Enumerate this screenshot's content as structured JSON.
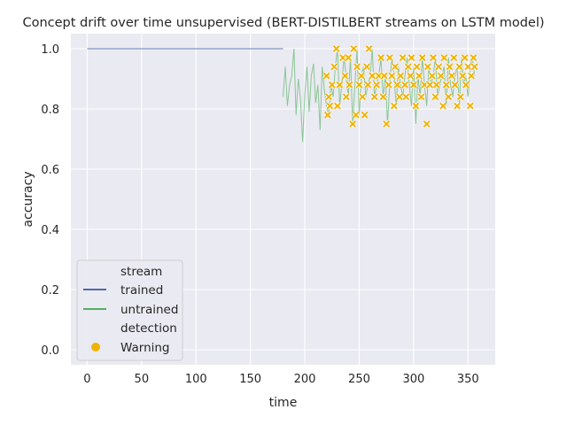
{
  "chart_data": {
    "type": "line",
    "title": "Concept drift over time unsupervised (BERT-DISTILBERT streams on LSTM model)",
    "xlabel": "time",
    "ylabel": "accuracy",
    "xlim": [
      -15,
      375
    ],
    "ylim": [
      -0.05,
      1.05
    ],
    "xticks": [
      0,
      50,
      100,
      150,
      200,
      250,
      300,
      350
    ],
    "yticks": [
      0.0,
      0.2,
      0.4,
      0.6,
      0.8,
      1.0
    ],
    "ytick_labels": [
      "0.0",
      "0.2",
      "0.4",
      "0.6",
      "0.8",
      "1.0"
    ],
    "grid": true,
    "legend_position": "lower-left",
    "legend": {
      "stream_header": "stream",
      "detection_header": "detection",
      "entries": [
        {
          "label": "trained",
          "color": "#3a55a0"
        },
        {
          "label": "untrained",
          "color": "#3aa84a"
        },
        {
          "label": "Warning",
          "color": "#f0b400"
        }
      ]
    },
    "colors": {
      "trained": "#3a55a0",
      "untrained": "#3aa84a",
      "warning": "#f0b400",
      "background": "#eaeaf2",
      "grid": "#ffffff"
    },
    "series": [
      {
        "name": "trained",
        "x": [
          0,
          180
        ],
        "y": [
          1.0,
          1.0
        ]
      },
      {
        "name": "untrained",
        "x": [
          180,
          182,
          184,
          186,
          188,
          190,
          192,
          194,
          196,
          198,
          200,
          202,
          204,
          206,
          208,
          210,
          212,
          214,
          216,
          218,
          220,
          222,
          224,
          226,
          228,
          230,
          232,
          234,
          236,
          238,
          240,
          242,
          244,
          246,
          248,
          250,
          252,
          254,
          256,
          258,
          260,
          262,
          264,
          266,
          268,
          270,
          272,
          274,
          276,
          278,
          280,
          282,
          284,
          286,
          288,
          290,
          292,
          294,
          296,
          298,
          300,
          302,
          304,
          306,
          308,
          310,
          312,
          314,
          316,
          318,
          320,
          322,
          324,
          326,
          328,
          330,
          332,
          334,
          336,
          338,
          340,
          342,
          344,
          346,
          348,
          350,
          352,
          354,
          356
        ],
        "y": [
          0.84,
          0.94,
          0.81,
          0.88,
          0.91,
          1.0,
          0.78,
          0.9,
          0.83,
          0.69,
          0.85,
          0.94,
          0.79,
          0.91,
          0.95,
          0.82,
          0.88,
          0.73,
          0.94,
          0.86,
          0.81,
          0.78,
          0.88,
          0.84,
          0.94,
          1.0,
          0.81,
          0.88,
          0.97,
          0.91,
          0.84,
          0.97,
          0.75,
          0.88,
          1.0,
          0.78,
          0.91,
          0.94,
          0.84,
          0.88,
          0.91,
          1.0,
          0.84,
          0.88,
          0.91,
          0.97,
          0.84,
          0.91,
          0.75,
          0.88,
          0.97,
          0.91,
          0.81,
          0.94,
          0.88,
          0.84,
          0.91,
          0.97,
          0.88,
          0.81,
          0.94,
          0.75,
          0.91,
          0.84,
          0.97,
          0.88,
          0.81,
          0.94,
          0.88,
          0.91,
          0.97,
          0.84,
          0.88,
          0.91,
          0.94,
          0.81,
          0.97,
          0.88,
          0.84,
          0.91,
          0.94,
          0.81,
          0.97,
          0.88,
          0.91,
          0.84,
          0.94,
          0.97,
          0.91
        ]
      }
    ],
    "warnings": {
      "name": "Warning",
      "x": [
        220,
        221,
        222,
        223,
        225,
        227,
        229,
        230,
        232,
        235,
        237,
        238,
        240,
        241,
        244,
        245,
        247,
        248,
        250,
        252,
        253,
        255,
        257,
        258,
        259,
        262,
        264,
        266,
        268,
        270,
        272,
        273,
        275,
        277,
        278,
        280,
        282,
        283,
        285,
        287,
        288,
        290,
        292,
        293,
        295,
        297,
        298,
        300,
        302,
        303,
        305,
        307,
        308,
        310,
        312,
        313,
        315,
        317,
        318,
        320,
        321,
        323,
        325,
        327,
        328,
        330,
        332,
        333,
        335,
        337,
        338,
        340,
        342,
        343,
        345,
        347,
        348,
        350,
        352,
        353,
        355,
        356
      ],
      "y": [
        0.91,
        0.78,
        0.84,
        0.81,
        0.88,
        0.94,
        1.0,
        0.81,
        0.88,
        0.97,
        0.91,
        0.84,
        0.97,
        0.88,
        0.75,
        1.0,
        0.78,
        0.94,
        0.88,
        0.91,
        0.84,
        0.78,
        0.94,
        0.88,
        1.0,
        0.91,
        0.84,
        0.88,
        0.91,
        0.97,
        0.84,
        0.91,
        0.75,
        0.88,
        0.97,
        0.91,
        0.81,
        0.94,
        0.88,
        0.84,
        0.91,
        0.97,
        0.88,
        0.84,
        0.94,
        0.91,
        0.97,
        0.88,
        0.81,
        0.94,
        0.91,
        0.84,
        0.97,
        0.88,
        0.75,
        0.94,
        0.88,
        0.91,
        0.97,
        0.84,
        0.88,
        0.94,
        0.91,
        0.81,
        0.97,
        0.88,
        0.84,
        0.94,
        0.91,
        0.97,
        0.88,
        0.81,
        0.94,
        0.84,
        0.91,
        0.97,
        0.88,
        0.94,
        0.81,
        0.91,
        0.97,
        0.94
      ]
    }
  }
}
